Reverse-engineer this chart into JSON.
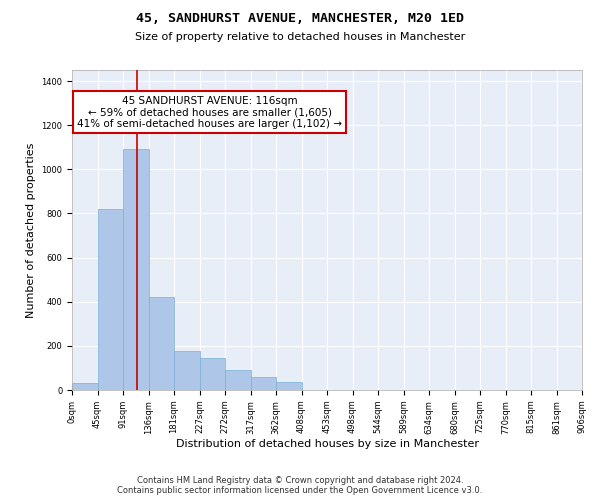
{
  "title": "45, SANDHURST AVENUE, MANCHESTER, M20 1ED",
  "subtitle": "Size of property relative to detached houses in Manchester",
  "xlabel": "Distribution of detached houses by size in Manchester",
  "ylabel": "Number of detached properties",
  "footer_line1": "Contains HM Land Registry data © Crown copyright and database right 2024.",
  "footer_line2": "Contains public sector information licensed under the Open Government Licence v3.0.",
  "bar_values": [
    30,
    820,
    1090,
    420,
    175,
    145,
    90,
    60,
    35,
    0,
    0,
    0,
    0,
    0,
    0,
    0,
    0,
    0,
    0,
    0
  ],
  "bin_labels": [
    "0sqm",
    "45sqm",
    "91sqm",
    "136sqm",
    "181sqm",
    "227sqm",
    "272sqm",
    "317sqm",
    "362sqm",
    "408sqm",
    "453sqm",
    "498sqm",
    "544sqm",
    "589sqm",
    "634sqm",
    "680sqm",
    "725sqm",
    "770sqm",
    "815sqm",
    "861sqm",
    "906sqm"
  ],
  "bar_color": "#aec6e8",
  "bar_edge_color": "#7ab0d4",
  "vline_x": 2.556,
  "vline_color": "#cc0000",
  "annotation_text": "45 SANDHURST AVENUE: 116sqm\n← 59% of detached houses are smaller (1,605)\n41% of semi-detached houses are larger (1,102) →",
  "annotation_box_color": "#ffffff",
  "annotation_box_edge_color": "#cc0000",
  "ylim": [
    0,
    1450
  ],
  "yticks": [
    0,
    200,
    400,
    600,
    800,
    1000,
    1200,
    1400
  ],
  "background_color": "#e8eef8",
  "grid_color": "#ffffff",
  "title_fontsize": 9.5,
  "subtitle_fontsize": 8,
  "xlabel_fontsize": 8,
  "ylabel_fontsize": 8,
  "tick_fontsize": 6,
  "annotation_fontsize": 7.5,
  "footer_fontsize": 6
}
